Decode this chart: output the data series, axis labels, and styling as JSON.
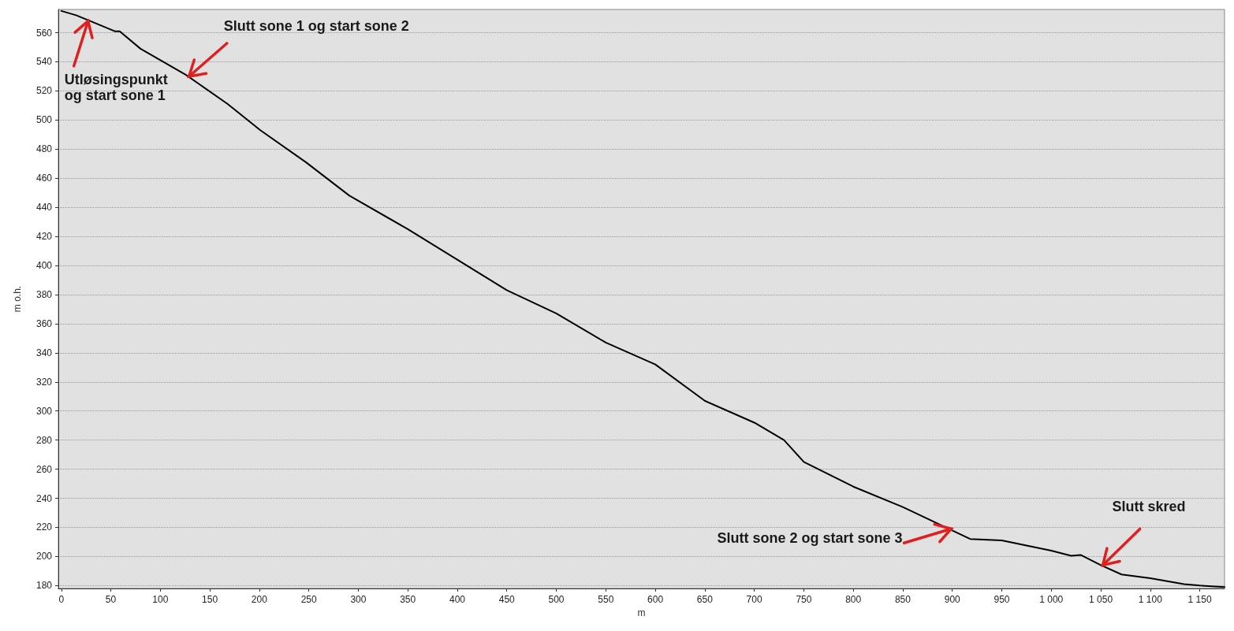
{
  "chart_data": {
    "type": "line",
    "xlabel": "m",
    "ylabel": "m o.h.",
    "x": [
      0,
      15,
      31,
      54,
      59,
      80,
      126,
      168,
      201,
      247,
      291,
      350,
      400,
      450,
      500,
      550,
      600,
      650,
      700,
      730,
      750,
      800,
      850,
      918,
      950,
      1000,
      1020,
      1030,
      1050,
      1071,
      1100,
      1134,
      1150,
      1175
    ],
    "series": [
      {
        "color": "#000000",
        "values": [
          575,
          572,
          567.5,
          561,
          561,
          549,
          531,
          511,
          493,
          471,
          448,
          425,
          404,
          383,
          367,
          347,
          332,
          307,
          292,
          280,
          265,
          248,
          234,
          212,
          211,
          204,
          200.5,
          201,
          194,
          187.6,
          185,
          181,
          180,
          179
        ]
      }
    ],
    "xlim": [
      -3,
      1175
    ],
    "ylim": [
      178,
      576
    ],
    "xticks": [
      0,
      50,
      100,
      150,
      200,
      250,
      300,
      350,
      400,
      450,
      500,
      550,
      600,
      650,
      700,
      750,
      800,
      850,
      900,
      950,
      {
        "value": 1000,
        "label": "1 000"
      },
      {
        "value": 1050,
        "label": "1 050"
      },
      {
        "value": 1100,
        "label": "1 100"
      },
      {
        "value": 1150,
        "label": "1 150"
      }
    ],
    "yticks": [
      180,
      200,
      220,
      240,
      260,
      280,
      300,
      320,
      340,
      360,
      380,
      400,
      420,
      440,
      460,
      480,
      500,
      520,
      540,
      560
    ],
    "grid": "y",
    "marker": "none",
    "line_style": "solid",
    "annotations": [
      {
        "text": "Utløsingspunkt og start sone 1",
        "x": 27,
        "y": 568
      },
      {
        "text": "Slutt sone 1 og start sone 2",
        "x": 129,
        "y": 530
      },
      {
        "text": "Slutt sone 2 og start sone 3",
        "x": 899,
        "y": 219
      },
      {
        "text": "Slutt skred",
        "x": 1052,
        "y": 194
      }
    ]
  }
}
